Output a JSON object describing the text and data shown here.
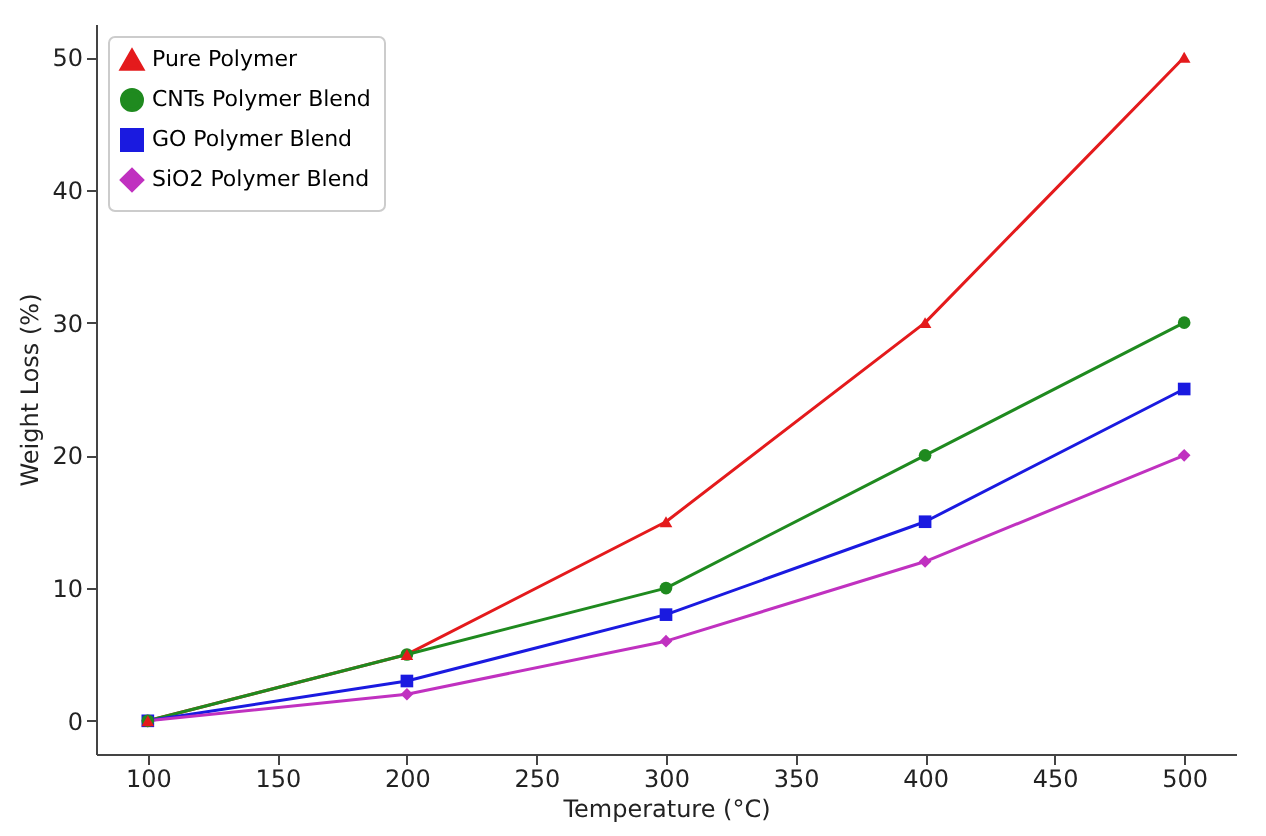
{
  "chart_data": {
    "type": "line",
    "xlabel": "Temperature (°C)",
    "ylabel": "Weight Loss (%)",
    "x": [
      100,
      200,
      300,
      400,
      500
    ],
    "series": [
      {
        "name": "Pure Polymer",
        "color": "#e41a1c",
        "marker": "triangle",
        "values": [
          0,
          5,
          15,
          30,
          50
        ]
      },
      {
        "name": "CNTs Polymer Blend",
        "color": "#1f8a1f",
        "marker": "circle",
        "values": [
          0,
          5,
          10,
          20,
          30
        ]
      },
      {
        "name": "GO Polymer Blend",
        "color": "#1a1ae0",
        "marker": "square",
        "values": [
          0,
          3,
          8,
          15,
          25
        ]
      },
      {
        "name": "SiO2 Polymer Blend",
        "color": "#c031c0",
        "marker": "diamond",
        "values": [
          0,
          2,
          6,
          12,
          20
        ]
      }
    ],
    "xlim": [
      80,
      520
    ],
    "xticks": [
      100,
      150,
      200,
      250,
      300,
      350,
      400,
      450,
      500
    ],
    "ylim": [
      -2.5,
      52.5
    ],
    "yticks": [
      0,
      10,
      20,
      30,
      40,
      50
    ],
    "grid": false,
    "legend": "top left",
    "line_style": "solid"
  }
}
